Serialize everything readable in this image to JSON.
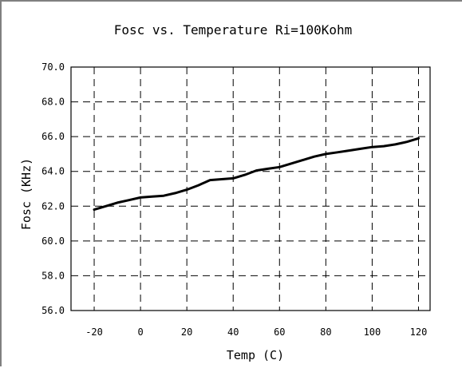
{
  "chart_data": {
    "type": "line",
    "title": "Fosc vs. Temperature Ri=100Kohm",
    "xlabel": "Temp (C)",
    "ylabel": "Fosc (KHz)",
    "xlim": [
      -30,
      125
    ],
    "ylim": [
      56.0,
      70.0
    ],
    "xticks": [
      -20,
      0,
      20,
      40,
      60,
      80,
      100,
      120
    ],
    "xtick_labels": [
      "-20",
      "0",
      "20",
      "40",
      "60",
      "80",
      "100",
      "120"
    ],
    "yticks": [
      56.0,
      58.0,
      60.0,
      62.0,
      64.0,
      66.0,
      68.0,
      70.0
    ],
    "ytick_labels": [
      "56.0",
      "58.0",
      "60.0",
      "62.0",
      "64.0",
      "66.0",
      "68.0",
      "70.0"
    ],
    "grid": true,
    "legend": false,
    "series": [
      {
        "color": "#000000",
        "x": [
          -20,
          -15,
          -10,
          -5,
          0,
          5,
          10,
          15,
          20,
          25,
          30,
          35,
          40,
          45,
          50,
          55,
          60,
          65,
          70,
          75,
          80,
          85,
          90,
          95,
          100,
          105,
          110,
          115,
          120
        ],
        "y": [
          61.8,
          62.0,
          62.2,
          62.35,
          62.5,
          62.55,
          62.6,
          62.75,
          62.95,
          63.2,
          63.5,
          63.55,
          63.6,
          63.8,
          64.05,
          64.15,
          64.25,
          64.45,
          64.65,
          64.85,
          65.0,
          65.1,
          65.2,
          65.3,
          65.4,
          65.45,
          65.55,
          65.7,
          65.9
        ]
      }
    ]
  }
}
